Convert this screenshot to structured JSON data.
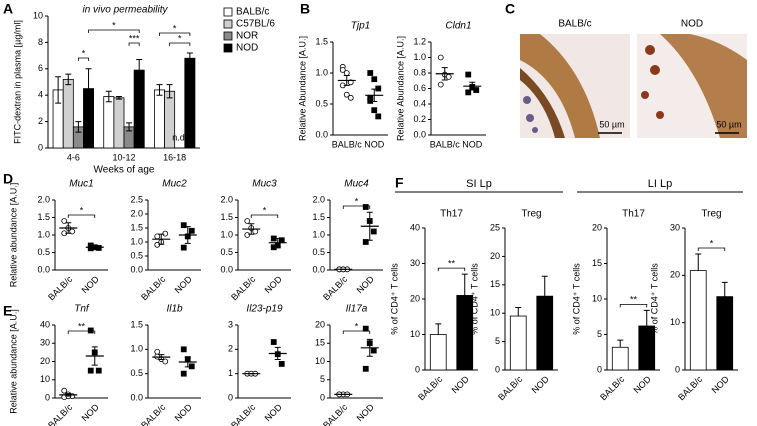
{
  "panel_labels": [
    "A",
    "B",
    "C",
    "D",
    "E",
    "F"
  ],
  "panel_c": {
    "images": [
      {
        "label": "BALB/c",
        "scale": "50 µm"
      },
      {
        "label": "NOD",
        "scale": "50 µm"
      }
    ]
  },
  "chart_data": [
    {
      "type": "bar",
      "title": "in vivo permeability",
      "ylabel": "FITC-dextran in plasma [µg/ml]",
      "xlabel": "Weeks of age",
      "categories": [
        "4-6",
        "10-12",
        "16-18"
      ],
      "series": [
        {
          "name": "BALB/c",
          "color": "#ffffff",
          "values": [
            4.4,
            3.9,
            4.4
          ],
          "errors": [
            1.0,
            0.4,
            0.4
          ]
        },
        {
          "name": "C57BL/6",
          "color": "#d0d0d0",
          "values": [
            5.2,
            3.8,
            4.3
          ],
          "errors": [
            0.4,
            0.1,
            0.5
          ]
        },
        {
          "name": "NOR",
          "color": "#8a8a8a",
          "values": [
            1.6,
            1.6,
            null
          ],
          "errors": [
            0.4,
            0.3,
            null
          ]
        },
        {
          "name": "NOD",
          "color": "#000000",
          "values": [
            4.5,
            5.9,
            6.8
          ],
          "errors": [
            1.5,
            0.8,
            0.4
          ]
        }
      ],
      "annotations": [
        "*",
        "*",
        "***",
        "*",
        "*",
        "n.d."
      ],
      "ylim": [
        0,
        10
      ],
      "yticks": [
        0,
        2,
        4,
        6,
        8,
        10
      ]
    },
    {
      "type": "dot",
      "title": "Tjp1",
      "ylabel": "Relative Abundance [A.U.]",
      "categories": [
        "BALB/c",
        "NOD"
      ],
      "colors": [
        "#ffffff",
        "#000000"
      ],
      "points": [
        [
          1.1,
          1.0,
          0.85,
          0.8,
          0.65,
          0.6,
          1.05
        ],
        [
          1.0,
          0.9,
          0.75,
          0.6,
          0.4,
          0.3,
          0.55
        ]
      ],
      "values": [
        0.88,
        0.64
      ],
      "errors": [
        0.08,
        0.1
      ],
      "ylim": [
        0,
        1.5
      ],
      "yticks": [
        {
          "value": 0,
          "label": "0.0"
        },
        {
          "value": 0.5,
          "label": "0.5"
        },
        {
          "value": 1,
          "label": "1.0"
        },
        {
          "value": 1.5,
          "label": "1.5"
        }
      ]
    },
    {
      "type": "dot",
      "title": "Cldn1",
      "ylabel": "Relative Abundance [A.U.]",
      "categories": [
        "BALB/c",
        "NOD"
      ],
      "colors": [
        "#ffffff",
        "#000000"
      ],
      "points": [
        [
          1.0,
          0.78,
          0.75,
          0.65
        ],
        [
          0.78,
          0.62,
          0.58,
          0.55
        ]
      ],
      "values": [
        0.79,
        0.63
      ],
      "errors": [
        0.08,
        0.05
      ],
      "ylim": [
        0,
        1.2
      ],
      "yticks": [
        {
          "value": 0,
          "label": "0.0"
        },
        0.2,
        0.4,
        0.6,
        0.8,
        {
          "value": 1,
          "label": "1.0"
        },
        1.2
      ]
    },
    {
      "type": "dot",
      "title": "Muc1",
      "ylabel": "Relative abundance [A.U.]",
      "categories": [
        "BALB/c",
        "NOD"
      ],
      "colors": [
        "#ffffff",
        "#000000"
      ],
      "points": [
        [
          1.4,
          1.2,
          1.1,
          1.05
        ],
        [
          0.7,
          0.65,
          0.63,
          0.62
        ]
      ],
      "values": [
        1.2,
        0.65
      ],
      "errors": [
        0.15,
        0.04
      ],
      "significance": "*",
      "ylim": [
        0,
        2
      ],
      "yticks": [
        {
          "value": 0,
          "label": "0.0"
        },
        0.5,
        {
          "value": 1,
          "label": "1.0"
        },
        1.5,
        {
          "value": 2,
          "label": "2.0"
        }
      ]
    },
    {
      "type": "dot",
      "title": "Muc2",
      "categories": [
        "BALB/c",
        "NOD"
      ],
      "colors": [
        "#ffffff",
        "#000000"
      ],
      "points": [
        [
          1.2,
          1.0,
          1.3,
          0.9
        ],
        [
          1.6,
          1.2,
          1.4,
          0.8
        ]
      ],
      "values": [
        1.1,
        1.25
      ],
      "errors": [
        0.18,
        0.3
      ],
      "ylim": [
        0,
        2.5
      ],
      "yticks": [
        {
          "value": 0,
          "label": "0.0"
        },
        0.5,
        {
          "value": 1,
          "label": "1.0"
        },
        1.5,
        {
          "value": 2,
          "label": "2.0"
        },
        2.5
      ]
    },
    {
      "type": "dot",
      "title": "Muc3",
      "categories": [
        "BALB/c",
        "NOD"
      ],
      "colors": [
        "#ffffff",
        "#000000"
      ],
      "points": [
        [
          1.4,
          1.2,
          1.1,
          1.0
        ],
        [
          0.9,
          0.7,
          0.85,
          0.65
        ]
      ],
      "values": [
        1.17,
        0.78
      ],
      "errors": [
        0.15,
        0.12
      ],
      "significance": "*",
      "ylim": [
        0,
        2
      ],
      "yticks": [
        {
          "value": 0,
          "label": "0.0"
        },
        0.5,
        {
          "value": 1,
          "label": "1.0"
        },
        1.5,
        {
          "value": 2,
          "label": "2.0"
        }
      ]
    },
    {
      "type": "dot",
      "title": "Muc4",
      "categories": [
        "BALB/c",
        "NOD"
      ],
      "colors": [
        "#ffffff",
        "#000000"
      ],
      "points": [
        [
          0.02,
          0.02,
          0.02,
          0.02,
          0.02
        ],
        [
          1.8,
          1.4,
          1.1,
          0.8
        ]
      ],
      "values": [
        0.02,
        1.25
      ],
      "errors": [
        0,
        0.4
      ],
      "significance": "*",
      "ylim": [
        0,
        2
      ],
      "yticks": [
        {
          "value": 0,
          "label": "0.0"
        },
        0.5,
        {
          "value": 1,
          "label": "1.0"
        },
        1.5,
        {
          "value": 2,
          "label": "2.0"
        }
      ]
    },
    {
      "type": "dot",
      "title": "Tnf",
      "ylabel": "Relative abundance [A.U.]",
      "categories": [
        "BALB/c",
        "NOD"
      ],
      "colors": [
        "#ffffff",
        "#000000"
      ],
      "points": [
        [
          4,
          2,
          1,
          0.5,
          1
        ],
        [
          37,
          25,
          15,
          15
        ]
      ],
      "values": [
        1.7,
        23
      ],
      "errors": [
        0.7,
        5
      ],
      "significance": "**",
      "ylim": [
        0,
        40
      ],
      "yticks": [
        0,
        10,
        20,
        30,
        40
      ]
    },
    {
      "type": "dot",
      "title": "Il1b",
      "categories": [
        "BALB/c",
        "NOD"
      ],
      "colors": [
        "#ffffff",
        "#000000"
      ],
      "points": [
        [
          0.95,
          0.8,
          0.75,
          0.85
        ],
        [
          1.0,
          0.8,
          0.65,
          0.5
        ]
      ],
      "values": [
        0.84,
        0.74
      ],
      "errors": [
        0.05,
        0.1
      ],
      "ylim": [
        0,
        1.5
      ],
      "yticks": [
        {
          "value": 0,
          "label": "0.0"
        },
        0.5,
        {
          "value": 1,
          "label": "1.0"
        },
        1.5
      ]
    },
    {
      "type": "dot",
      "title": "Il23-p19",
      "categories": [
        "BALB/c",
        "NOD"
      ],
      "colors": [
        "#ffffff",
        "#000000"
      ],
      "points": [
        [
          1,
          1,
          1
        ],
        [
          2.3,
          1.8,
          1.4
        ]
      ],
      "values": [
        1,
        1.83
      ],
      "errors": [
        0,
        0.25
      ],
      "ylim": [
        0,
        3
      ],
      "yticks": [
        0,
        1,
        2,
        3
      ]
    },
    {
      "type": "dot",
      "title": "Il17a",
      "categories": [
        "BALB/c",
        "NOD"
      ],
      "colors": [
        "#ffffff",
        "#000000"
      ],
      "points": [
        [
          1,
          1,
          1,
          1
        ],
        [
          19,
          15,
          13,
          8
        ]
      ],
      "values": [
        1,
        13.75
      ],
      "errors": [
        0,
        2.3
      ],
      "significance": "*",
      "ylim": [
        0,
        20
      ],
      "yticks": [
        0,
        5,
        10,
        15,
        20
      ]
    },
    {
      "type": "bar",
      "group": "SI Lp",
      "title": "Th17",
      "ylabel": "% of CD4⁺ T cells",
      "categories": [
        "BALB/c",
        "NOD"
      ],
      "colors": [
        "#ffffff",
        "#000000"
      ],
      "values": [
        10,
        21
      ],
      "errors": [
        3,
        6
      ],
      "significance": "**",
      "ylim": [
        0,
        40
      ],
      "yticks": [
        0,
        10,
        20,
        30,
        40
      ]
    },
    {
      "type": "bar",
      "title": "Treg",
      "ylabel": "% of CD4⁺ T cells",
      "categories": [
        "BALB/c",
        "NOD"
      ],
      "colors": [
        "#ffffff",
        "#000000"
      ],
      "values": [
        9.5,
        13
      ],
      "errors": [
        1.5,
        3.5
      ],
      "ylim": [
        0,
        25
      ],
      "yticks": [
        0,
        5,
        10,
        15,
        20,
        25
      ]
    },
    {
      "type": "bar",
      "group": "LI Lp",
      "title": "Th17",
      "ylabel": "% of CD4⁺ T cells",
      "categories": [
        "BALB/c",
        "NOD"
      ],
      "colors": [
        "#ffffff",
        "#000000"
      ],
      "values": [
        3.2,
        6.2
      ],
      "errors": [
        1,
        2.2
      ],
      "significance": "**",
      "ylim": [
        0,
        20
      ],
      "yticks": [
        0,
        5,
        10,
        15,
        20
      ]
    },
    {
      "type": "bar",
      "title": "Treg",
      "ylabel": "% of CD4⁺ T cells",
      "categories": [
        "BALB/c",
        "NOD"
      ],
      "colors": [
        "#ffffff",
        "#000000"
      ],
      "values": [
        21,
        15.5
      ],
      "errors": [
        3.5,
        3
      ],
      "significance": "*",
      "ylim": [
        0,
        30
      ],
      "yticks": [
        0,
        10,
        20,
        30
      ]
    }
  ]
}
